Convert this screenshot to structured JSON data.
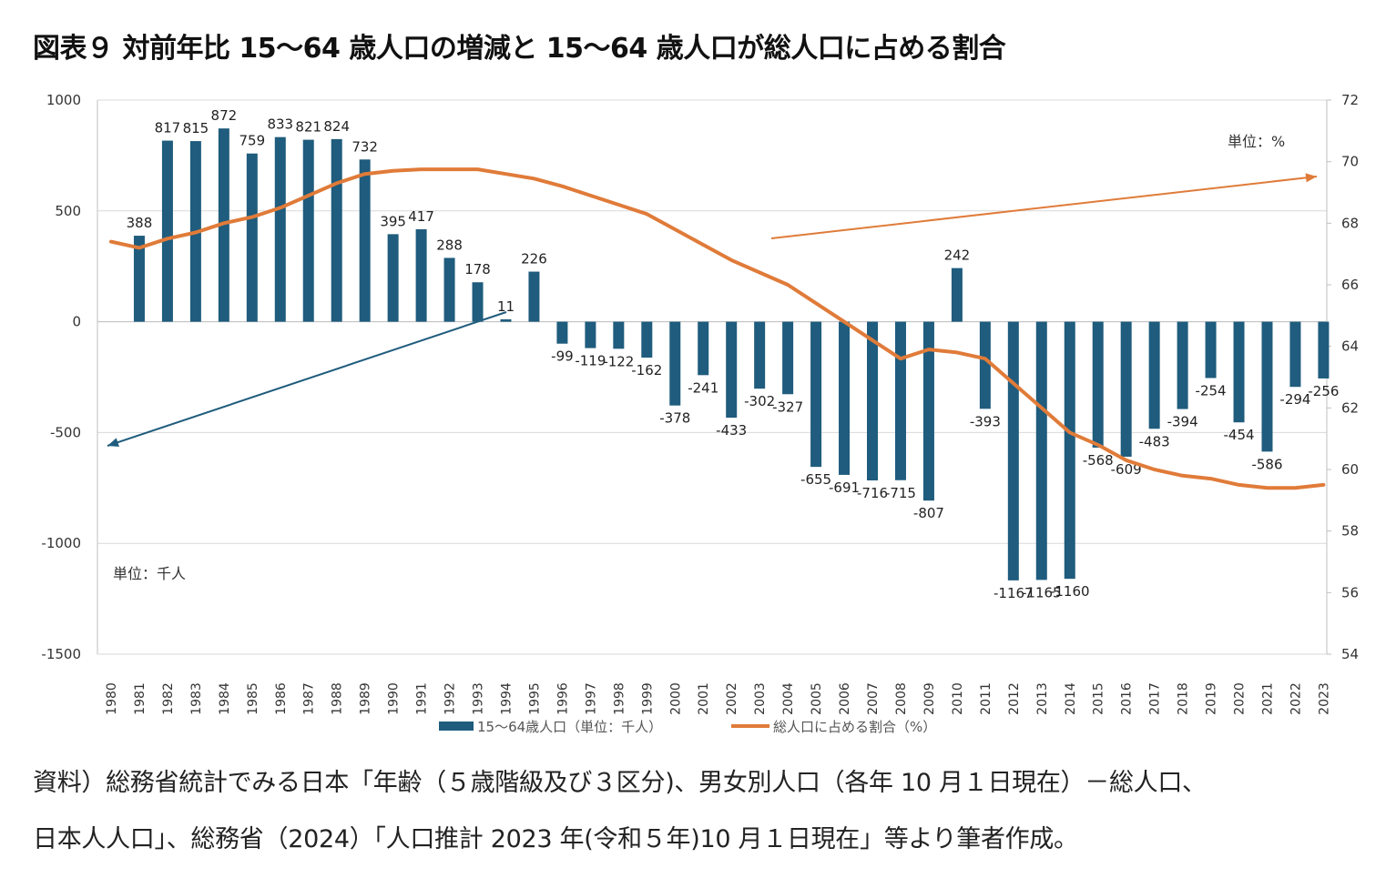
{
  "title": "図表９ 対前年比 15～64 歳人口の増減と 15～64 歳人口が総人口に占める割合",
  "source_line1": "資料）総務省統計でみる日本「年齢（５歳階級及び３区分)、男女別人口（各年 10 月１日現在）－総人口、",
  "source_line2": "日本人人口」、総務省（2024）「人口推計 2023 年(令和５年)10 月１日現在」等より筆者作成。",
  "colors": {
    "bar": "#1f5c7d",
    "line": "#e07b39",
    "grid": "#d9d9d9",
    "axis": "#bfbfbf"
  },
  "chart_data": {
    "type": "bar+line",
    "categories": [
      "1980",
      "1981",
      "1982",
      "1983",
      "1984",
      "1985",
      "1986",
      "1987",
      "1988",
      "1989",
      "1990",
      "1991",
      "1992",
      "1993",
      "1994",
      "1995",
      "1996",
      "1997",
      "1998",
      "1999",
      "2000",
      "2001",
      "2002",
      "2003",
      "2004",
      "2005",
      "2006",
      "2007",
      "2008",
      "2009",
      "2010",
      "2011",
      "2012",
      "2013",
      "2014",
      "2015",
      "2016",
      "2017",
      "2018",
      "2019",
      "2020",
      "2021",
      "2022",
      "2023"
    ],
    "series": [
      {
        "name": "15～64歳人口（単位：千人）",
        "type": "bar",
        "axis": "left",
        "values": [
          null,
          388,
          817,
          815,
          872,
          759,
          833,
          821,
          824,
          732,
          395,
          417,
          288,
          178,
          11,
          226,
          -99,
          -119,
          -122,
          -162,
          -378,
          -241,
          -433,
          -302,
          -327,
          -655,
          -691,
          -716,
          -715,
          -807,
          242,
          -393,
          -1167,
          -1165,
          -1160,
          -568,
          -609,
          -483,
          -394,
          -254,
          -454,
          -586,
          -294,
          -256
        ]
      },
      {
        "name": "総人口に占める割合（%）",
        "type": "line",
        "axis": "right",
        "values": [
          67.4,
          67.2,
          67.5,
          67.7,
          68.0,
          68.2,
          68.5,
          68.9,
          69.3,
          69.6,
          69.7,
          69.75,
          69.75,
          69.75,
          69.6,
          69.45,
          69.2,
          68.9,
          68.6,
          68.3,
          67.8,
          67.3,
          66.8,
          66.4,
          66.0,
          65.4,
          64.8,
          64.2,
          63.6,
          63.9,
          63.8,
          63.6,
          62.8,
          62.0,
          61.2,
          60.8,
          60.3,
          60.0,
          59.8,
          59.7,
          59.5,
          59.4,
          59.4,
          59.5
        ]
      }
    ],
    "y_left": {
      "min": -1500,
      "max": 1000,
      "ticks": [
        1000,
        500,
        0,
        -500,
        -1000,
        -1500
      ]
    },
    "y_right": {
      "min": 54,
      "max": 72,
      "ticks": [
        72,
        70,
        68,
        66,
        64,
        62,
        60,
        58,
        56,
        54
      ]
    },
    "left_unit": "単位：千人",
    "right_unit": "単位：%",
    "annotations": [
      "arrow from 1994 toward the left axis",
      "arrow from 2004 toward the right axis"
    ],
    "legend": {
      "position": "bottom",
      "bar_label": "15～64歳人口（単位：千人）",
      "line_label": "総人口に占める割合（%）"
    }
  }
}
